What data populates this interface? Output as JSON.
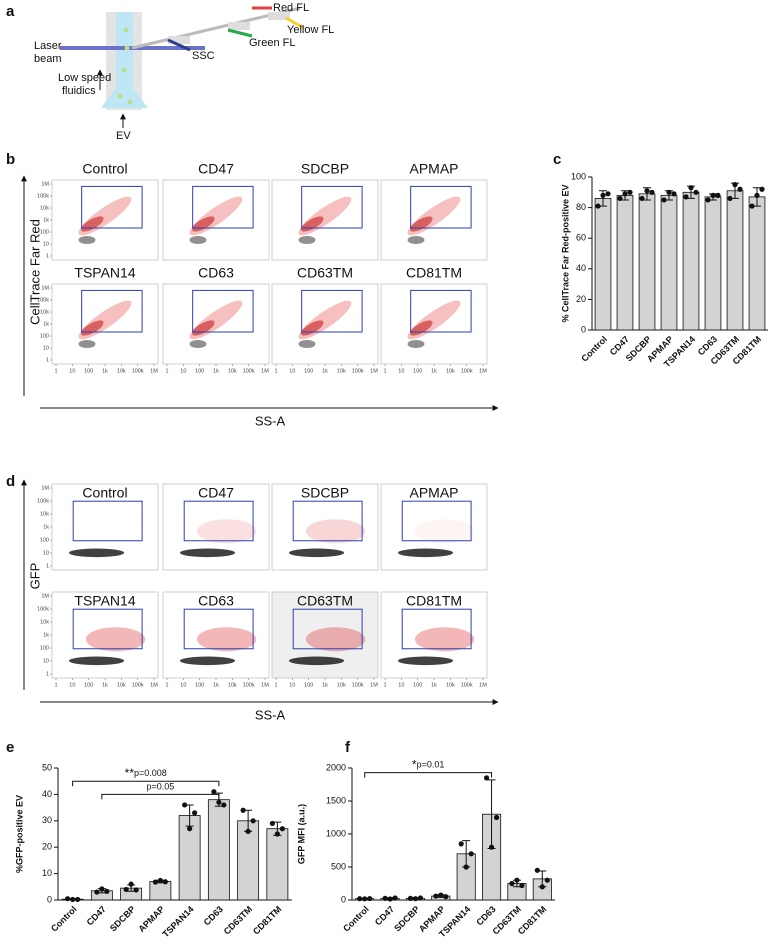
{
  "panel_a": {
    "letter": "a",
    "laser_beam": [
      "Laser",
      "beam"
    ],
    "fluidics": [
      "Low speed",
      "fluidics"
    ],
    "ev": "EV",
    "ssc": "SSC",
    "green": "Green FL",
    "yellow": "Yellow FL",
    "red": "Red FL"
  },
  "flow_axes": {
    "ticks": [
      1,
      10,
      100,
      {
        "value": 1000,
        "label": "1k"
      },
      {
        "value": 10000,
        "label": "10k"
      },
      {
        "value": 100000,
        "label": "100k"
      },
      {
        "value": 1000000,
        "label": "1M"
      }
    ]
  },
  "panel_b": {
    "letter": "b",
    "y_label": "CellTrace Far Red",
    "x_label": "SS-A",
    "plots": [
      "Control",
      "CD47",
      "SDCBP",
      "APMAP",
      "TSPAN14",
      "CD63",
      "CD63TM",
      "CD81TM"
    ]
  },
  "panel_d": {
    "letter": "d",
    "y_label": "GFP",
    "x_label": "SS-A",
    "plots": [
      "Control",
      "CD47",
      "SDCBP",
      "APMAP",
      "TSPAN14",
      "CD63",
      "CD63TM",
      "CD81TM"
    ]
  },
  "chart_data": [
    {
      "type": "bar",
      "letter": "c",
      "y_label": "% CellTrace Far Red-positive EV",
      "categories": [
        "Control",
        "CD47",
        "SDCBP",
        "APMAP",
        "TSPAN14",
        "CD63",
        "CD63TM",
        "CD81TM"
      ],
      "values": [
        86,
        88,
        89,
        88,
        90,
        87,
        91,
        87
      ],
      "errors": [
        5,
        3,
        4,
        3,
        4,
        2,
        5,
        6
      ],
      "points": [
        [
          81,
          88,
          89
        ],
        [
          86,
          89,
          90
        ],
        [
          86,
          91,
          90
        ],
        [
          85,
          90,
          89
        ],
        [
          87,
          93,
          90
        ],
        [
          85,
          88,
          88
        ],
        [
          86,
          95,
          92
        ],
        [
          81,
          88,
          92
        ]
      ],
      "color": "#d3d3d3",
      "ylim": [
        0,
        100
      ],
      "yticks": [
        0,
        20,
        40,
        60,
        80,
        100
      ]
    },
    {
      "type": "bar",
      "letter": "e",
      "y_label": "%GFP-positive EV",
      "categories": [
        "Control",
        "CD47",
        "SDCBP",
        "APMAP",
        "TSPAN14",
        "CD63",
        "CD63TM",
        "CD81TM"
      ],
      "values": [
        0.3,
        3.5,
        4.5,
        7,
        32,
        38,
        30,
        27
      ],
      "errors": [
        0.2,
        0.8,
        1.2,
        0.5,
        4,
        2.5,
        4,
        2.5
      ],
      "points": [
        [
          0.5,
          0.2,
          0.2
        ],
        [
          3,
          4.2,
          3.3
        ],
        [
          4,
          6,
          3.8
        ],
        [
          6.8,
          7.4,
          6.9
        ],
        [
          36,
          27,
          33
        ],
        [
          41,
          37,
          36
        ],
        [
          34,
          26,
          30
        ],
        [
          29,
          25,
          27
        ]
      ],
      "annotations": [
        {
          "stars": "**",
          "text": "p=0.008"
        },
        {
          "text": "p=0.05"
        }
      ],
      "color": "#d3d3d3",
      "ylim": [
        0,
        50
      ],
      "yticks": [
        0,
        10,
        20,
        30,
        40,
        50
      ]
    },
    {
      "type": "bar",
      "letter": "f",
      "y_label": "GFP MFI (a.u.)",
      "categories": [
        "Control",
        "CD47",
        "SDCBP",
        "APMAP",
        "TSPAN14",
        "CD63",
        "CD63TM",
        "CD81TM"
      ],
      "values": [
        20,
        25,
        25,
        60,
        700,
        1300,
        250,
        320
      ],
      "errors": [
        5,
        10,
        10,
        20,
        200,
        520,
        50,
        120
      ],
      "points": [
        [
          20,
          18,
          22
        ],
        [
          25,
          15,
          30
        ],
        [
          25,
          20,
          30
        ],
        [
          60,
          75,
          50
        ],
        [
          850,
          500,
          700
        ],
        [
          1850,
          800,
          1250
        ],
        [
          250,
          300,
          220
        ],
        [
          450,
          200,
          300
        ]
      ],
      "annotations": [
        {
          "stars": "*",
          "text": "p=0.01"
        }
      ],
      "color": "#d3d3d3",
      "ylim": [
        0,
        2000
      ],
      "yticks": [
        0,
        500,
        1000,
        1500,
        2000
      ]
    }
  ]
}
